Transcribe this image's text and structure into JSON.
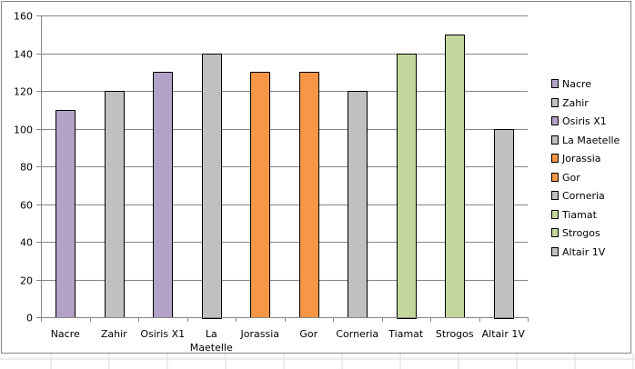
{
  "chart_data": {
    "type": "bar",
    "title": "",
    "xlabel": "",
    "ylabel": "",
    "categories": [
      "Nacre",
      "Zahir",
      "Osiris X1",
      "La Maetelle",
      "Jorassia",
      "Gor",
      "Corneria",
      "Tiamat",
      "Strogos",
      "Altair 1V"
    ],
    "category_label_lines": [
      [
        "Nacre"
      ],
      [
        "Zahir"
      ],
      [
        "Osiris X1"
      ],
      [
        "La",
        "Maetelle"
      ],
      [
        "Jorassia"
      ],
      [
        "Gor"
      ],
      [
        "Corneria"
      ],
      [
        "Tiamat"
      ],
      [
        "Strogos"
      ],
      [
        "Altair 1V"
      ]
    ],
    "values": [
      110,
      120,
      130,
      140,
      130,
      130,
      120,
      140,
      150,
      100
    ],
    "colors": [
      "#b3a2c7",
      "#c0c0c0",
      "#b3a2c7",
      "#c0c0c0",
      "#f79646",
      "#f79646",
      "#c0c0c0",
      "#c3d69b",
      "#c3d69b",
      "#c0c0c0"
    ],
    "ylim": [
      0,
      160
    ],
    "yticks": [
      0,
      20,
      40,
      60,
      80,
      100,
      120,
      140,
      160
    ],
    "grid": true,
    "legend_position": "right",
    "legend": [
      "Nacre",
      "Zahir",
      "Osiris X1",
      "La Maetelle",
      "Jorassia",
      "Gor",
      "Corneria",
      "Tiamat",
      "Strogos",
      "Altair 1V"
    ]
  }
}
